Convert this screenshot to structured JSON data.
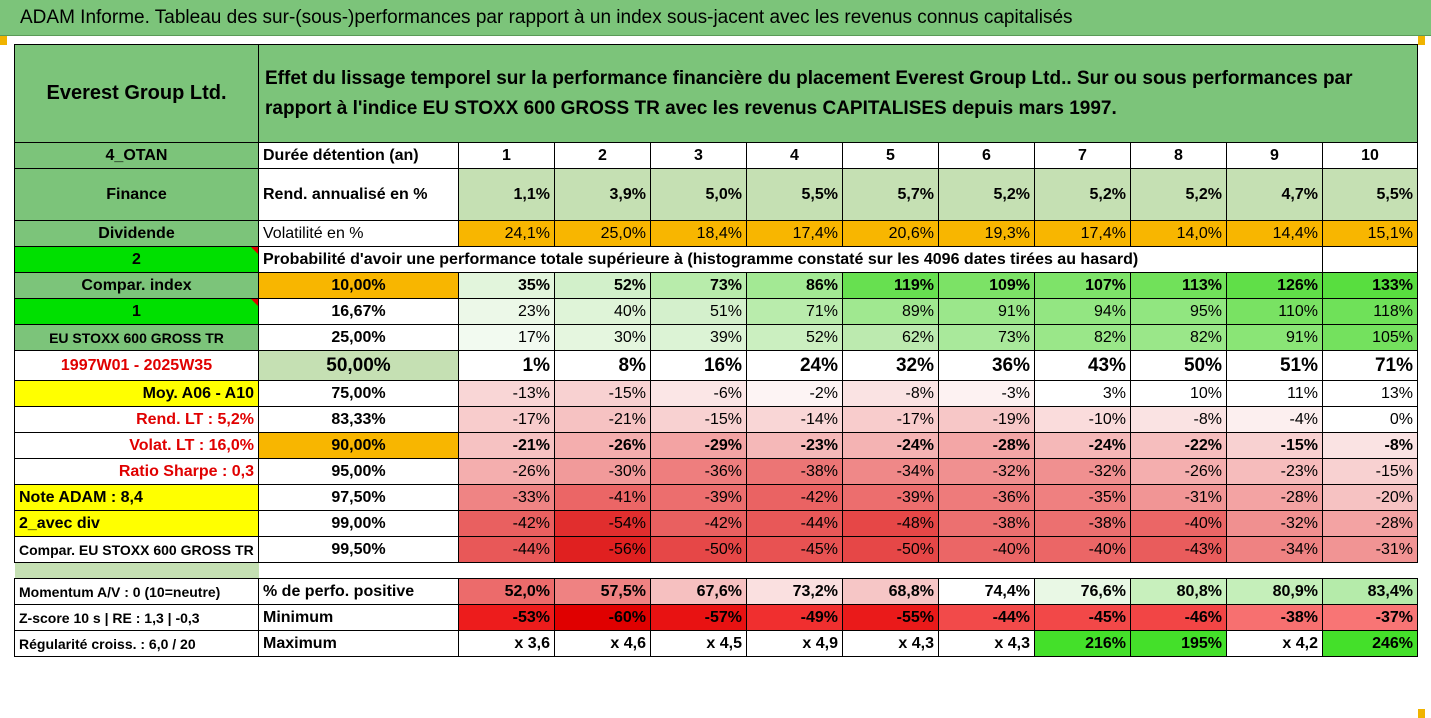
{
  "banner_title": "ADAM Informe. Tableau des sur-(sous-)performances par rapport à un index sous-jacent avec les revenus connus capitalisés",
  "header": {
    "company": "Everest Group Ltd.",
    "description": "Effet du lissage temporel sur la performance financière du placement Everest Group Ltd.. Sur ou sous performances par rapport à l'indice EU STOXX 600 GROSS TR avec les revenus CAPITALISES depuis mars 1997."
  },
  "duration_row": {
    "left": "4_OTAN",
    "label": "Durée détention (an)",
    "years": [
      "1",
      "2",
      "3",
      "4",
      "5",
      "6",
      "7",
      "8",
      "9",
      "10"
    ]
  },
  "rend_row": {
    "left": "Finance",
    "label": "Rend. annualisé en %",
    "values": [
      "1,1%",
      "3,9%",
      "5,0%",
      "5,5%",
      "5,7%",
      "5,2%",
      "5,2%",
      "5,2%",
      "4,7%",
      "5,5%"
    ]
  },
  "vol_row": {
    "left": "Dividende",
    "label": "Volatilité en %",
    "values": [
      "24,1%",
      "25,0%",
      "18,4%",
      "17,4%",
      "20,6%",
      "19,3%",
      "17,4%",
      "14,0%",
      "14,4%",
      "15,1%"
    ]
  },
  "prob_row": {
    "left": "2",
    "label": "Probabilité d'avoir une performance totale supérieure à (histogramme constaté sur les 4096 dates tirées au hasard)"
  },
  "prob_table": [
    {
      "left": "Compar. index",
      "pct": "10,00%",
      "values": [
        "35%",
        "52%",
        "73%",
        "86%",
        "119%",
        "109%",
        "107%",
        "113%",
        "126%",
        "133%"
      ]
    },
    {
      "left": "1",
      "pct": "16,67%",
      "values": [
        "23%",
        "40%",
        "51%",
        "71%",
        "89%",
        "91%",
        "94%",
        "95%",
        "110%",
        "118%"
      ]
    },
    {
      "left": "EU STOXX 600 GROSS TR",
      "pct": "25,00%",
      "values": [
        "17%",
        "30%",
        "39%",
        "52%",
        "62%",
        "73%",
        "82%",
        "82%",
        "91%",
        "105%"
      ]
    },
    {
      "left": "1997W01 - 2025W35",
      "pct": "50,00%",
      "values": [
        "1%",
        "8%",
        "16%",
        "24%",
        "32%",
        "36%",
        "43%",
        "50%",
        "51%",
        "71%"
      ]
    },
    {
      "left": "Moy. A06 - A10",
      "pct": "75,00%",
      "values": [
        "-13%",
        "-15%",
        "-6%",
        "-2%",
        "-8%",
        "-3%",
        "3%",
        "10%",
        "11%",
        "13%"
      ]
    },
    {
      "left": "Rend. LT :    5,2%",
      "pct": "83,33%",
      "values": [
        "-17%",
        "-21%",
        "-15%",
        "-14%",
        "-17%",
        "-19%",
        "-10%",
        "-8%",
        "-4%",
        "0%"
      ]
    },
    {
      "left": "Volat. LT :   16,0%",
      "pct": "90,00%",
      "values": [
        "-21%",
        "-26%",
        "-29%",
        "-23%",
        "-24%",
        "-28%",
        "-24%",
        "-22%",
        "-15%",
        "-8%"
      ]
    },
    {
      "left": "Ratio Sharpe :    0,3",
      "pct": "95,00%",
      "values": [
        "-26%",
        "-30%",
        "-36%",
        "-38%",
        "-34%",
        "-32%",
        "-32%",
        "-26%",
        "-23%",
        "-15%"
      ]
    },
    {
      "left": "Note ADAM : 8,4",
      "pct": "97,50%",
      "values": [
        "-33%",
        "-41%",
        "-39%",
        "-42%",
        "-39%",
        "-36%",
        "-35%",
        "-31%",
        "-28%",
        "-20%"
      ]
    },
    {
      "left": "2_avec div",
      "pct": "99,00%",
      "values": [
        "-42%",
        "-54%",
        "-42%",
        "-44%",
        "-48%",
        "-38%",
        "-38%",
        "-40%",
        "-32%",
        "-28%"
      ]
    },
    {
      "left": "Compar. EU STOXX 600 GROSS TR",
      "pct": "99,50%",
      "values": [
        "-44%",
        "-56%",
        "-50%",
        "-45%",
        "-50%",
        "-40%",
        "-40%",
        "-43%",
        "-34%",
        "-31%"
      ]
    }
  ],
  "bottom_rows": [
    {
      "left": "Momentum A/V : 0 (10=neutre)",
      "label": "% de perfo. positive",
      "values": [
        "52,0%",
        "57,5%",
        "67,6%",
        "73,2%",
        "68,8%",
        "74,4%",
        "76,6%",
        "80,8%",
        "80,9%",
        "83,4%"
      ]
    },
    {
      "left": "Z-score 10 s  | RE : 1,3  | -0,3",
      "label": "Minimum",
      "values": [
        "-53%",
        "-60%",
        "-57%",
        "-49%",
        "-55%",
        "-44%",
        "-45%",
        "-46%",
        "-38%",
        "-37%"
      ]
    },
    {
      "left": "Régularité croiss. : 6,0 / 20",
      "label": "Maximum",
      "values": [
        "x 3,6",
        "x 4,6",
        "x 4,5",
        "x 4,9",
        "x 4,3",
        "x 4,3",
        "216%",
        "195%",
        "x 4,2",
        "246%"
      ]
    }
  ],
  "colors": {
    "prob_table": [
      [
        "#e2f5dc",
        "#d2f0ca",
        "#b8ecab",
        "#a3e994",
        "#67e050",
        "#7ce266",
        "#7ee369",
        "#71e15a",
        "#60df48",
        "#58de3f"
      ],
      [
        "#ecf8e8",
        "#dff4d8",
        "#d4f0cc",
        "#b9ecac",
        "#a0e890",
        "#9be78b",
        "#93e682",
        "#91e680",
        "#79e263",
        "#6fe159"
      ],
      [
        "#f2faf0",
        "#e5f6df",
        "#dcf3d5",
        "#cbefc0",
        "#bceaaf",
        "#a9e99b",
        "#9ae789",
        "#9ae789",
        "#8ae576",
        "#74e15e"
      ],
      [
        "#ffffff",
        "#ffffff",
        "#ffffff",
        "#ffffff",
        "#ffffff",
        "#ffffff",
        "#ffffff",
        "#ffffff",
        "#ffffff",
        "#ffffff"
      ],
      [
        "#f9d6d6",
        "#f8d1d1",
        "#fbe6e6",
        "#fdf4f4",
        "#fae3e3",
        "#fdf2f2",
        "#ffffff",
        "#ffffff",
        "#ffffff",
        "#ffffff"
      ],
      [
        "#f8cccc",
        "#f6c2c2",
        "#f8d1d1",
        "#f9d6d6",
        "#f8cccc",
        "#f7c7c7",
        "#fadcdc",
        "#fae3e3",
        "#fcefef",
        "#ffffff"
      ],
      [
        "#f6c2c2",
        "#f4aeae",
        "#f3a3a3",
        "#f5b8b8",
        "#f4b3b3",
        "#f3a6a6",
        "#f5b8b8",
        "#f6bebe",
        "#f8d1d1",
        "#fae3e3"
      ],
      [
        "#f4aeae",
        "#f19a9a",
        "#ee7e7e",
        "#ec7575",
        "#ef8888",
        "#f09090",
        "#f09090",
        "#f4aeae",
        "#f6bcbc",
        "#f8d1d1"
      ],
      [
        "#ef8484",
        "#eb6666",
        "#ec6e6e",
        "#ea6363",
        "#ec6e6e",
        "#ee7b7b",
        "#ef8080",
        "#f19595",
        "#f3a3a3",
        "#f6c2c2"
      ],
      [
        "#e96060",
        "#e12e2e",
        "#e96060",
        "#e85858",
        "#e64747",
        "#ec7070",
        "#ec7070",
        "#eb6666",
        "#f09090",
        "#f3a3a3"
      ],
      [
        "#e85858",
        "#e02020",
        "#e64747",
        "#e85252",
        "#e64747",
        "#eb6666",
        "#eb6666",
        "#e95c5c",
        "#ef8282",
        "#f19494"
      ]
    ],
    "bottom_rows": [
      [
        "#ec6b6b",
        "#ef8282",
        "#f6c0c0",
        "#fae0e0",
        "#f6c6c6",
        "#ffffff",
        "#e9f8e5",
        "#c8f0bd",
        "#c5efba",
        "#b5ebaa"
      ],
      [
        "#ed1c1c",
        "#e00000",
        "#e81212",
        "#f02f2f",
        "#ea1a1a",
        "#f24a4a",
        "#f24848",
        "#f24545",
        "#f77070",
        "#f87575"
      ],
      [
        "#ffffff",
        "#ffffff",
        "#ffffff",
        "#ffffff",
        "#ffffff",
        "#ffffff",
        "#44e02a",
        "#44e02a",
        "#ffffff",
        "#44e02a"
      ]
    ]
  }
}
